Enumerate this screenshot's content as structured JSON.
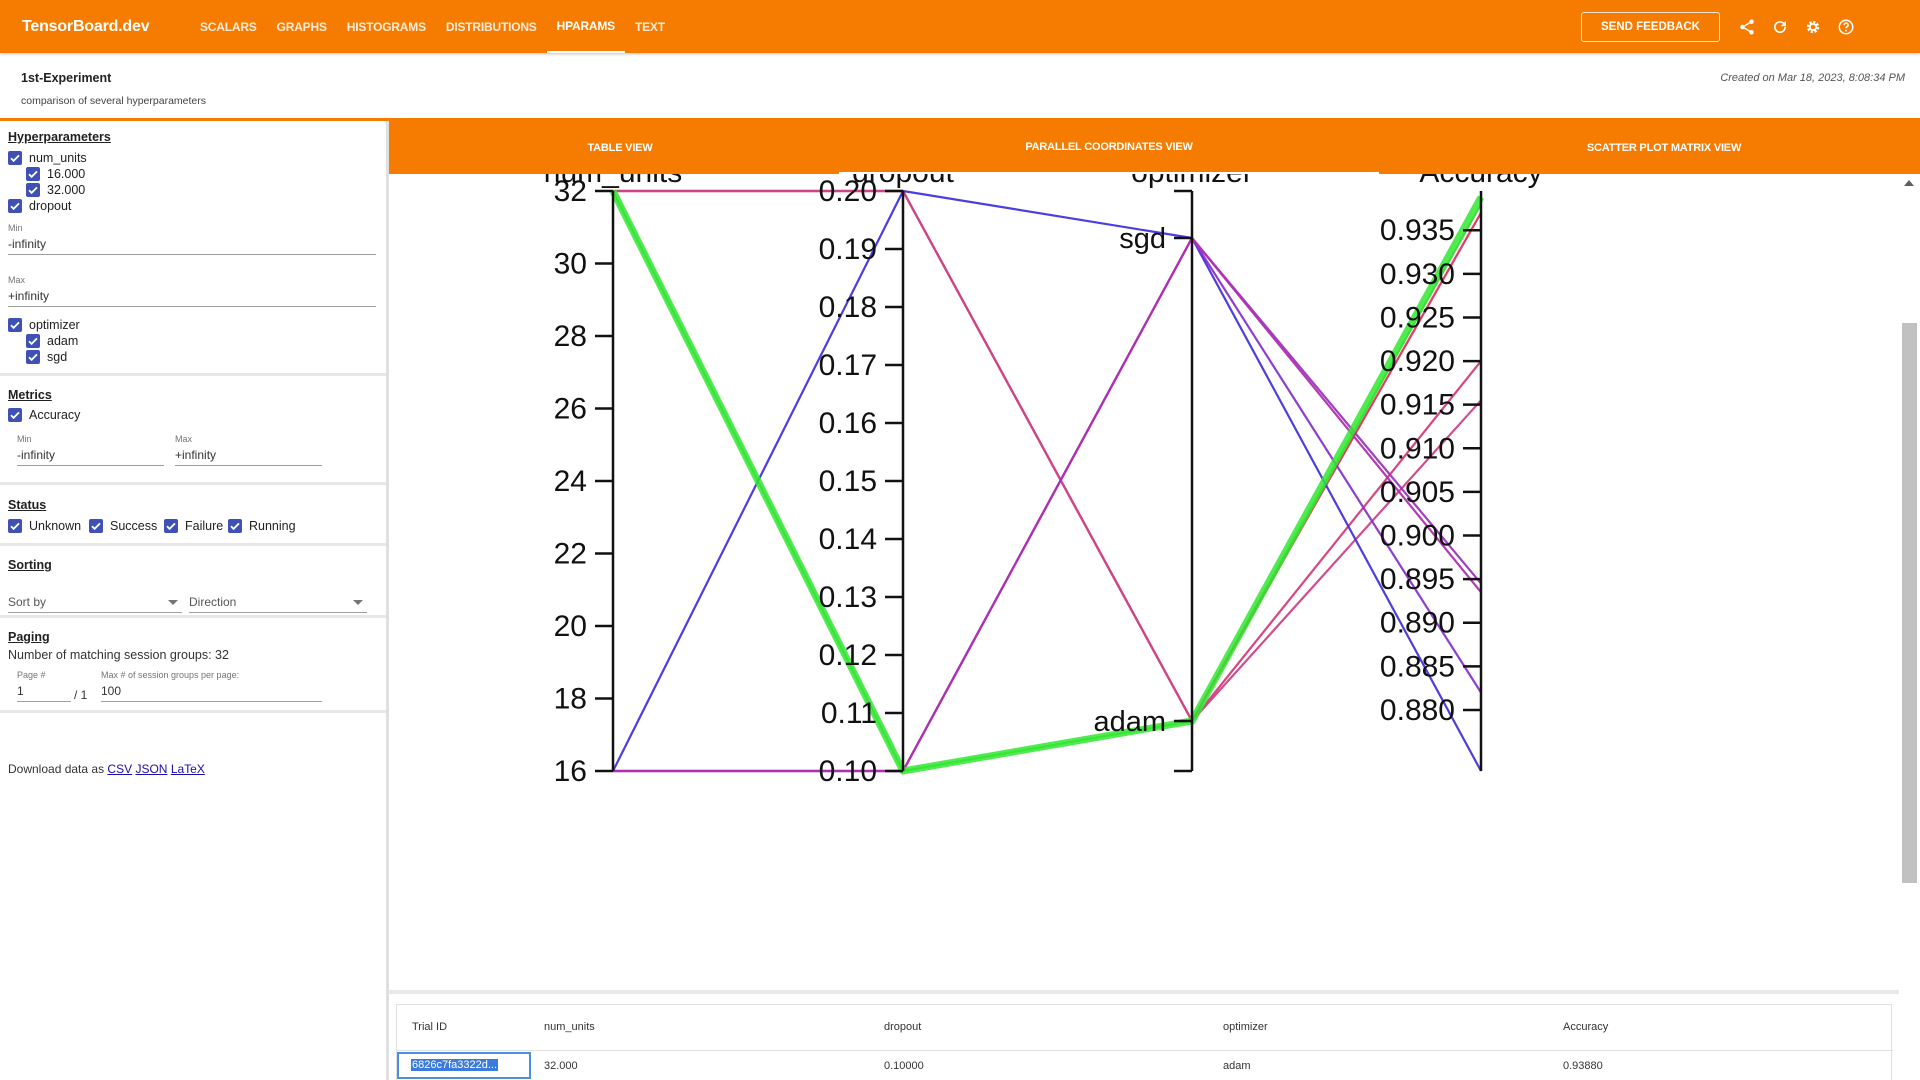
{
  "topbar": {
    "brand": "TensorBoard.dev",
    "tabs": [
      {
        "label": "SCALARS",
        "active": false
      },
      {
        "label": "GRAPHS",
        "active": false
      },
      {
        "label": "HISTOGRAMS",
        "active": false
      },
      {
        "label": "DISTRIBUTIONS",
        "active": false
      },
      {
        "label": "HPARAMS",
        "active": true
      },
      {
        "label": "TEXT",
        "active": false
      }
    ],
    "feedback_label": "SEND FEEDBACK",
    "icons": [
      "share-icon",
      "refresh-icon",
      "settings-icon",
      "help-icon"
    ],
    "color": "#f57c00"
  },
  "experiment": {
    "title": "1st-Experiment",
    "description": "comparison of several hyperparameters",
    "created": "Created on Mar 18, 2023, 8:08:34 PM"
  },
  "sidebar": {
    "hyperparameters": {
      "title": "Hyperparameters",
      "num_units": {
        "label": "num_units",
        "values": [
          "16.000",
          "32.000"
        ]
      },
      "dropout": {
        "label": "dropout",
        "min_label": "Min",
        "min_value": "-infinity",
        "max_label": "Max",
        "max_value": "+infinity"
      },
      "optimizer": {
        "label": "optimizer",
        "values": [
          "adam",
          "sgd"
        ]
      }
    },
    "metrics": {
      "title": "Metrics",
      "accuracy": {
        "label": "Accuracy",
        "min_label": "Min",
        "min_value": "-infinity",
        "max_label": "Max",
        "max_value": "+infinity"
      }
    },
    "status": {
      "title": "Status",
      "options": [
        "Unknown",
        "Success",
        "Failure",
        "Running"
      ]
    },
    "sorting": {
      "title": "Sorting",
      "sort_by_placeholder": "Sort by",
      "direction_placeholder": "Direction"
    },
    "paging": {
      "title": "Paging",
      "matching_text": "Number of matching session groups: 32",
      "page_label": "Page #",
      "page_value": "1",
      "page_total": "/ 1",
      "max_label": "Max # of session groups per page:",
      "max_value": "100"
    },
    "download": {
      "prefix": "Download data as",
      "formats": [
        "CSV",
        "JSON",
        "LaTeX"
      ]
    }
  },
  "view_tabs": [
    {
      "label": "TABLE VIEW",
      "active": false
    },
    {
      "label": "PARALLEL COORDINATES VIEW",
      "active": true
    },
    {
      "label": "SCATTER PLOT MATRIX VIEW",
      "active": false
    }
  ],
  "chart_data": {
    "type": "parallel_coordinates",
    "axes": [
      {
        "name": "num_units",
        "kind": "numeric",
        "range": [
          16,
          32
        ],
        "ticks": [
          "16",
          "18",
          "20",
          "22",
          "24",
          "26",
          "28",
          "30",
          "32"
        ]
      },
      {
        "name": "dropout",
        "kind": "numeric",
        "range": [
          0.1,
          0.2
        ],
        "ticks": [
          "0.10",
          "0.11",
          "0.12",
          "0.13",
          "0.14",
          "0.15",
          "0.16",
          "0.17",
          "0.18",
          "0.19",
          "0.20"
        ]
      },
      {
        "name": "optimizer",
        "kind": "categorical",
        "categories": [
          "adam",
          "sgd"
        ]
      },
      {
        "name": "Accuracy",
        "kind": "numeric",
        "range": [
          0.873,
          0.9395
        ],
        "ticks": [
          "0.880",
          "0.885",
          "0.890",
          "0.895",
          "0.900",
          "0.905",
          "0.910",
          "0.915",
          "0.920",
          "0.925",
          "0.930",
          "0.935"
        ]
      }
    ],
    "lines": [
      {
        "values": [
          32,
          0.1,
          "adam",
          0.9388
        ],
        "color": "#33e833",
        "highlight": true
      },
      {
        "values": [
          32,
          0.1,
          "adam",
          0.938
        ],
        "color": "#3fd13f",
        "highlight": false
      },
      {
        "values": [
          32,
          0.2,
          "adam",
          0.937
        ],
        "color": "#e0305a",
        "highlight": false
      },
      {
        "values": [
          32,
          0.2,
          "adam",
          0.92
        ],
        "color": "#d63c7a",
        "highlight": false
      },
      {
        "values": [
          32,
          0.2,
          "adam",
          0.9155
        ],
        "color": "#cc4488",
        "highlight": false
      },
      {
        "values": [
          16,
          0.2,
          "sgd",
          0.873
        ],
        "color": "#4433dd",
        "highlight": false
      },
      {
        "values": [
          16,
          0.1,
          "sgd",
          0.882
        ],
        "color": "#8833cc",
        "highlight": false
      },
      {
        "values": [
          16,
          0.1,
          "sgd",
          0.8945
        ],
        "color": "#9a35bf",
        "highlight": false
      },
      {
        "values": [
          16,
          0.1,
          "sgd",
          0.8935
        ],
        "color": "#b02fb0",
        "highlight": false
      }
    ]
  },
  "table": {
    "headers": [
      "Trial ID",
      "num_units",
      "dropout",
      "optimizer",
      "Accuracy"
    ],
    "rows": [
      [
        "6826c7fa3322d...",
        "32.000",
        "0.10000",
        "adam",
        "0.93880"
      ]
    ]
  }
}
